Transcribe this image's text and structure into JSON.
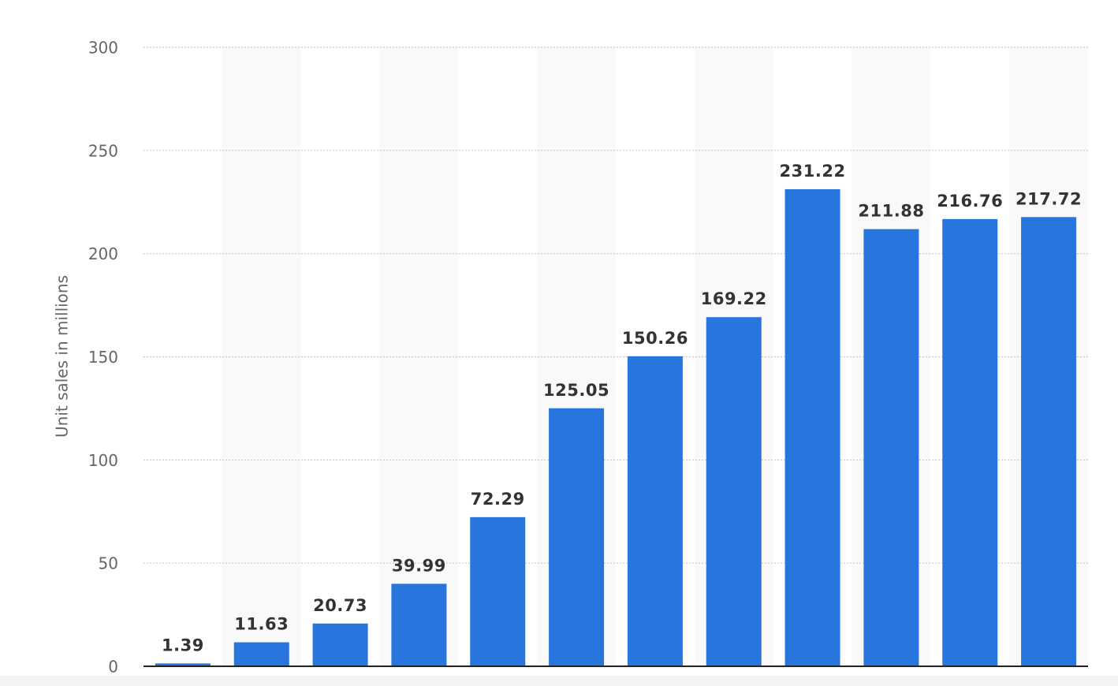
{
  "chart_data": {
    "type": "bar",
    "y_label": "Unit sales in millions",
    "categories": [
      null,
      null,
      null,
      null,
      null,
      null,
      null,
      null,
      null,
      null,
      null,
      null
    ],
    "values": [
      1.39,
      11.63,
      20.73,
      39.99,
      72.29,
      125.05,
      150.26,
      169.22,
      231.22,
      211.88,
      216.76,
      217.72
    ],
    "color": "#2876dd",
    "ylim": [
      0,
      300
    ],
    "yticks": [
      0,
      50,
      100,
      150,
      200,
      250,
      300
    ],
    "grid": true
  }
}
